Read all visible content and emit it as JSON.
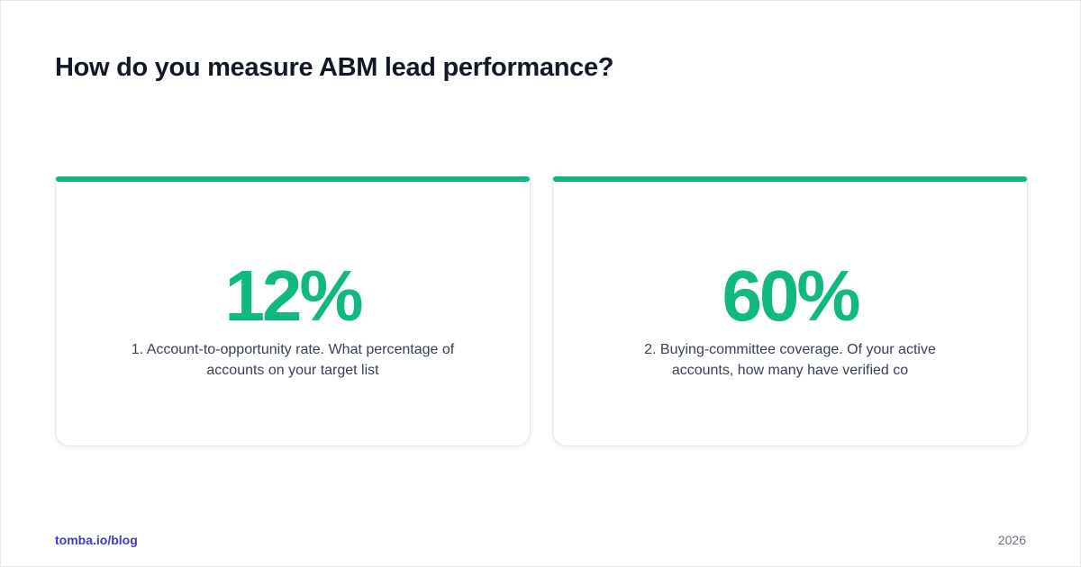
{
  "title": "How do you measure ABM lead performance?",
  "accent_color": "#10b981",
  "cards": [
    {
      "stat": "12%",
      "description": "1. Account-to-opportunity rate. What percentage of accounts on your target list"
    },
    {
      "stat": "60%",
      "description": "2. Buying-committee coverage. Of your active accounts, how many have verified co"
    }
  ],
  "footer": {
    "link": "tomba.io/blog",
    "year": "2026"
  }
}
